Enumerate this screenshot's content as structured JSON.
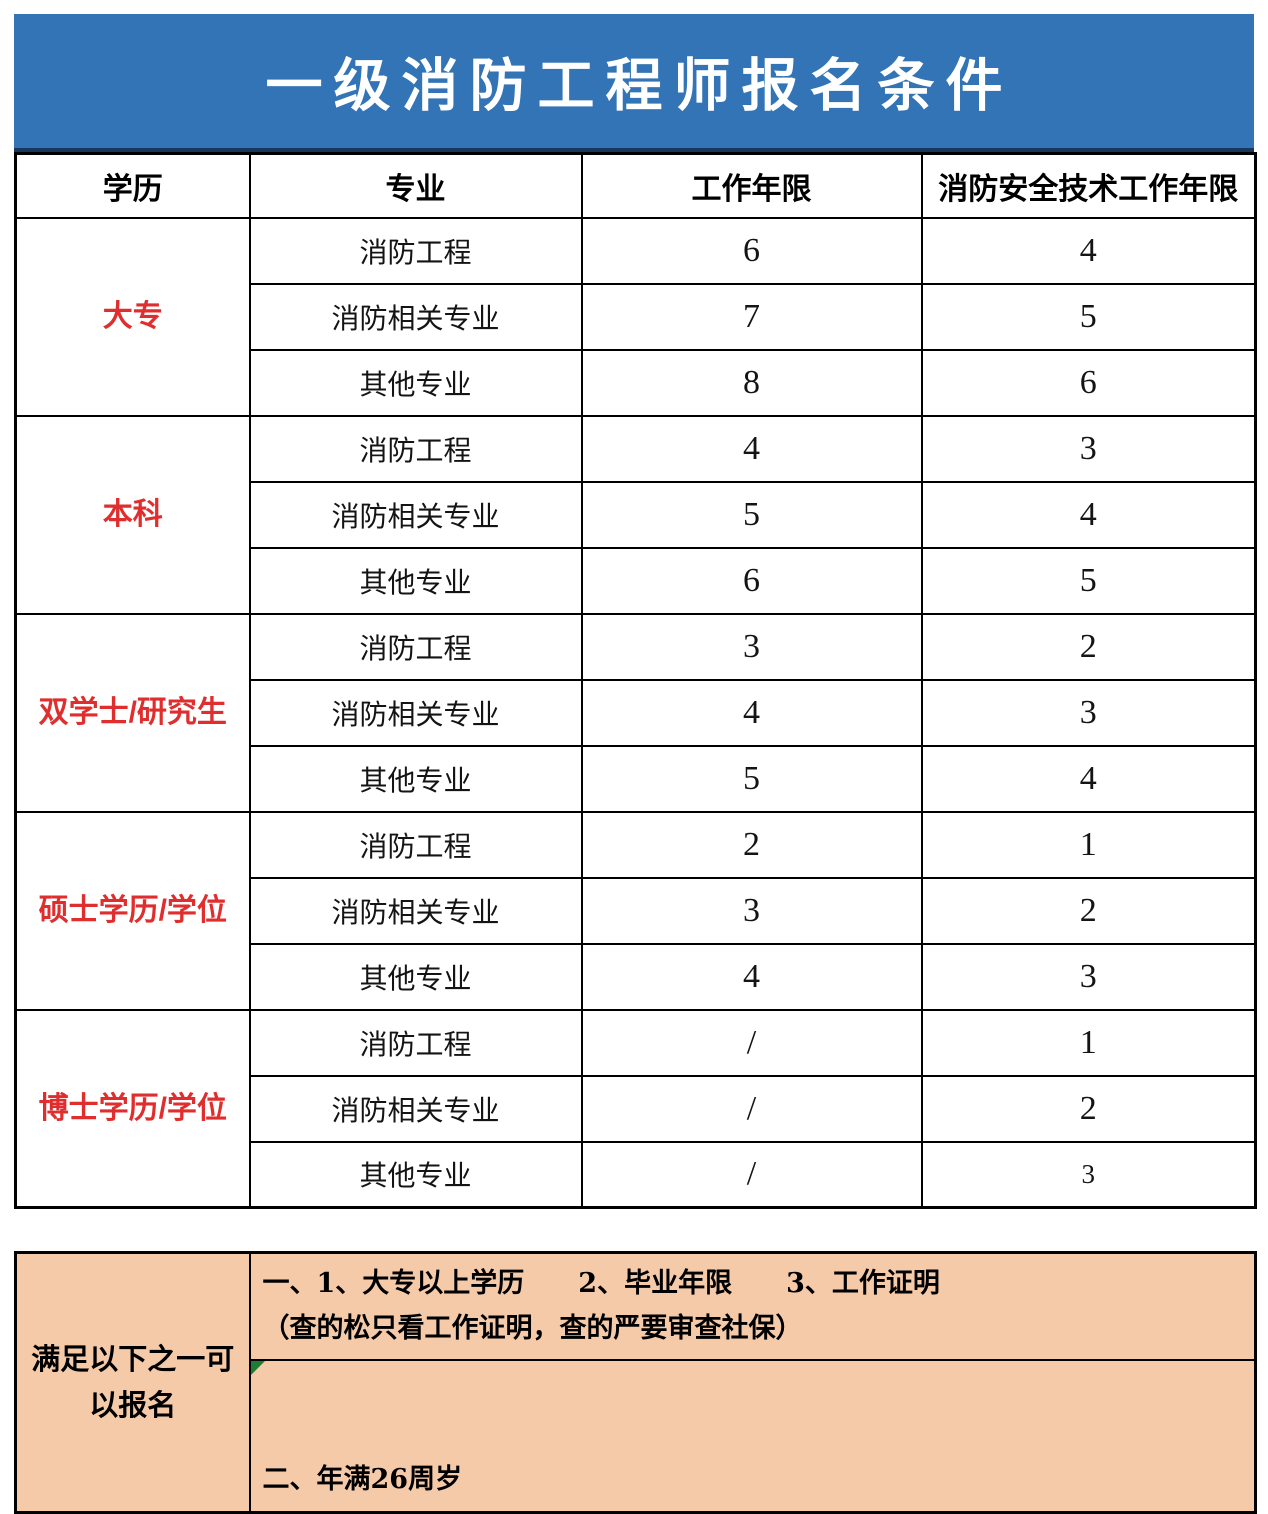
{
  "title": "一级消防工程师报名条件",
  "table": {
    "headers": [
      "学历",
      "专业",
      "工作年限",
      "消防安全技术工作年限"
    ],
    "groups": [
      {
        "education": "大专",
        "rows": [
          {
            "major": "消防工程",
            "work_years": "6",
            "fire_years": "4"
          },
          {
            "major": "消防相关专业",
            "work_years": "7",
            "fire_years": "5"
          },
          {
            "major": "其他专业",
            "work_years": "8",
            "fire_years": "6"
          }
        ]
      },
      {
        "education": "本科",
        "rows": [
          {
            "major": "消防工程",
            "work_years": "4",
            "fire_years": "3"
          },
          {
            "major": "消防相关专业",
            "work_years": "5",
            "fire_years": "4"
          },
          {
            "major": "其他专业",
            "work_years": "6",
            "fire_years": "5"
          }
        ]
      },
      {
        "education": "双学士/研究生",
        "rows": [
          {
            "major": "消防工程",
            "work_years": "3",
            "fire_years": "2"
          },
          {
            "major": "消防相关专业",
            "work_years": "4",
            "fire_years": "3"
          },
          {
            "major": "其他专业",
            "work_years": "5",
            "fire_years": "4"
          }
        ]
      },
      {
        "education": "硕士学历/学位",
        "rows": [
          {
            "major": "消防工程",
            "work_years": "2",
            "fire_years": "1"
          },
          {
            "major": "消防相关专业",
            "work_years": "3",
            "fire_years": "2"
          },
          {
            "major": "其他专业",
            "work_years": "4",
            "fire_years": "3"
          }
        ]
      },
      {
        "education": "博士学历/学位",
        "rows": [
          {
            "major": "消防工程",
            "work_years": "/",
            "fire_years": "1"
          },
          {
            "major": "消防相关专业",
            "work_years": "/",
            "fire_years": "2"
          },
          {
            "major": "其他专业",
            "work_years": "/",
            "fire_years": "3"
          }
        ]
      }
    ]
  },
  "notes": {
    "label": "满足以下之一可\n以报名",
    "items": [
      "一、1、大专以上学历　　2、毕业年限　　3、工作证明\n（查的松只看工作证明，查的严要审查社保）",
      "二、年满26周岁"
    ]
  },
  "colors": {
    "banner_blue": "#3274B5",
    "banner_edge": "#17375D",
    "education_red": "#E02E2E",
    "note_peach": "#F5CAA9",
    "marker_green": "#1E7B34"
  }
}
